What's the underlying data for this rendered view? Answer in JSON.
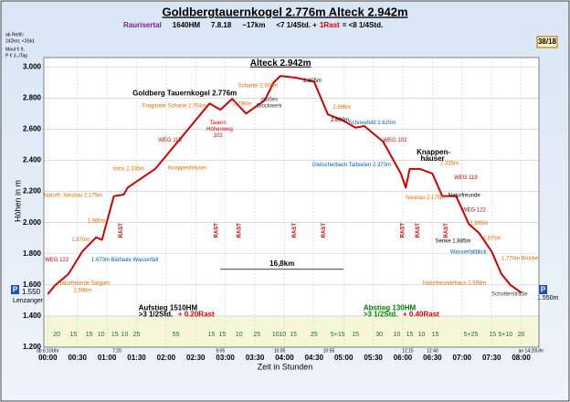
{
  "chart_data": {
    "type": "line",
    "title": "Goldbergtauernkogel 2.776m  Alteck 2.942m",
    "subtitle_items": [
      {
        "text": "Raurisertal",
        "color": "#7a1fa2"
      },
      {
        "text": "1640HM",
        "color": "#000000"
      },
      {
        "text": "7.8.18",
        "color": "#000000"
      },
      {
        "text": "~17km",
        "color": "#000000"
      },
      {
        "text": "<7 1/4Std. +",
        "color": "#000000"
      },
      {
        "text": "1Rast",
        "color": "#e00000"
      },
      {
        "text": "= <8 1/4Std.",
        "color": "#000000"
      }
    ],
    "page_badge": "38/18",
    "notes": [
      "ab Reith:",
      "242km; <3Std.",
      "Maut € 9,",
      "P € 3,-/Tag"
    ],
    "y_label": "Höhen in m",
    "x_label": "Zeit in Stunden",
    "xlim": [
      -4,
      498
    ],
    "ylim": [
      1200,
      3060
    ],
    "xticks": [
      {
        "value": 0,
        "label": "00:00"
      },
      {
        "value": 30,
        "label": "00:30"
      },
      {
        "value": 60,
        "label": "01:00"
      },
      {
        "value": 90,
        "label": "01:30"
      },
      {
        "value": 120,
        "label": "02:00"
      },
      {
        "value": 150,
        "label": "02:30"
      },
      {
        "value": 180,
        "label": "03:00"
      },
      {
        "value": 210,
        "label": "03:30"
      },
      {
        "value": 240,
        "label": "04:00"
      },
      {
        "value": 270,
        "label": "04:30"
      },
      {
        "value": 300,
        "label": "05:00"
      },
      {
        "value": 330,
        "label": "05:30"
      },
      {
        "value": 360,
        "label": "06:00"
      },
      {
        "value": 390,
        "label": "06:30"
      },
      {
        "value": 420,
        "label": "07:00"
      },
      {
        "value": 450,
        "label": "07:30"
      },
      {
        "value": 480,
        "label": "08:00"
      }
    ],
    "yticks": [
      {
        "value": 1200,
        "label": "1.200"
      },
      {
        "value": 1400,
        "label": "1.400"
      },
      {
        "value": 1600,
        "label": "1.600"
      },
      {
        "value": 1800,
        "label": "1.800"
      },
      {
        "value": 2000,
        "label": "2.000"
      },
      {
        "value": 2200,
        "label": "2.200"
      },
      {
        "value": 2400,
        "label": "2.400"
      },
      {
        "value": 2600,
        "label": "2.600"
      },
      {
        "value": 2800,
        "label": "2.800"
      },
      {
        "value": 3000,
        "label": "3.000"
      }
    ],
    "grid": true,
    "x": [
      0,
      7,
      21,
      35,
      49,
      55,
      67,
      77,
      81,
      109,
      164,
      175,
      187,
      201,
      220,
      229,
      236,
      252,
      270,
      284,
      298,
      312,
      321,
      340,
      358,
      363,
      367,
      377,
      390,
      400,
      414,
      427,
      437,
      450,
      460,
      469,
      480
    ],
    "series": [
      {
        "color": "#d40000",
        "values": [
          1540,
          1595,
          1670,
          1815,
          1905,
          1890,
          2170,
          2180,
          2225,
          2345,
          2765,
          2725,
          2795,
          2700,
          2785,
          2900,
          2942,
          2930,
          2905,
          2695,
          2660,
          2610,
          2620,
          2520,
          2315,
          2225,
          2345,
          2345,
          2315,
          2170,
          2170,
          1990,
          1935,
          1815,
          1670,
          1600,
          1550
        ]
      }
    ],
    "peak_label": "Alteck 2.942m",
    "peak_x": 236,
    "peak_y": 2942,
    "annotations": [
      {
        "text": "Goldberg Tauernkogel  2.776m",
        "x": 86,
        "y": 2830,
        "color": "#000000",
        "bold": true
      },
      {
        "text": "Fraganter Scharte 2.754m",
        "x": 96,
        "y": 2750,
        "color": "#e07000",
        "bold": false
      },
      {
        "text": "2.796m",
        "x": 188,
        "y": 2760,
        "color": "#e07000",
        "bold": false
      },
      {
        "text": "Tauern",
        "x": 164,
        "y": 2640,
        "color": "#d40000",
        "bold": false
      },
      {
        "text": "Höhenweg",
        "x": 161,
        "y": 2600,
        "color": "#d40000",
        "bold": false
      },
      {
        "text": "102",
        "x": 168,
        "y": 2560,
        "color": "#d40000",
        "bold": false
      },
      {
        "text": "WEG 119",
        "x": 112,
        "y": 2530,
        "color": "#d40000",
        "bold": false
      },
      {
        "text": "großes",
        "x": 216,
        "y": 2790,
        "color": "#333333",
        "bold": false
      },
      {
        "text": "Blockwerk",
        "x": 212,
        "y": 2750,
        "color": "#333333",
        "bold": false
      },
      {
        "text": "Schartel 2.905m",
        "x": 193,
        "y": 2880,
        "color": "#e07000",
        "bold": false
      },
      {
        "text": "2.905m",
        "x": 259,
        "y": 2910,
        "color": "#000000",
        "bold": false
      },
      {
        "text": "2.696m",
        "x": 289,
        "y": 2740,
        "color": "#e07000",
        "bold": false
      },
      {
        "text": "2.660m",
        "x": 287,
        "y": 2660,
        "color": "#000000",
        "bold": false
      },
      {
        "text": "Schneefeld 2.620m",
        "x": 305,
        "y": 2640,
        "color": "#0060c0",
        "bold": false
      },
      {
        "text": "WEG 102",
        "x": 340,
        "y": 2530,
        "color": "#d40000",
        "bold": false
      },
      {
        "text": "Knappen-",
        "x": 374,
        "y": 2450,
        "color": "#000000",
        "bold": true
      },
      {
        "text": "häuser",
        "x": 378,
        "y": 2410,
        "color": "#000000",
        "bold": true
      },
      {
        "text": "2.335m",
        "x": 398,
        "y": 2380,
        "color": "#e07000",
        "bold": false
      },
      {
        "text": "WEG 119",
        "x": 412,
        "y": 2290,
        "color": "#d40000",
        "bold": false
      },
      {
        "text": "Neubau 2.175m",
        "x": 363,
        "y": 2160,
        "color": "#e07000",
        "bold": false
      },
      {
        "text": "Naturfreunde",
        "x": 406,
        "y": 2175,
        "color": "#000000",
        "bold": false
      },
      {
        "text": "WEG 122",
        "x": 420,
        "y": 2080,
        "color": "#d40000",
        "bold": false
      },
      {
        "text": "1.985m",
        "x": 428,
        "y": 1995,
        "color": "#e07000",
        "bold": false
      },
      {
        "text": "Senke 1.885m",
        "x": 393,
        "y": 1880,
        "color": "#000000",
        "bold": false
      },
      {
        "text": "1.870m",
        "x": 441,
        "y": 1900,
        "color": "#e07000",
        "bold": false
      },
      {
        "text": "Wasserfallblick",
        "x": 408,
        "y": 1810,
        "color": "#0060c0",
        "bold": false
      },
      {
        "text": "1.770m Brücke",
        "x": 460,
        "y": 1770,
        "color": "#e07000",
        "bold": false
      },
      {
        "text": "Naturfreundehaus 1.598m",
        "x": 380,
        "y": 1610,
        "color": "#e07000",
        "bold": false
      },
      {
        "text": "Schotterstraße",
        "x": 450,
        "y": 1540,
        "color": "#333333",
        "bold": false
      },
      {
        "text": "Gletscherbach Talboden 2.370m",
        "x": 268,
        "y": 2370,
        "color": "#0060c0",
        "bold": false
      },
      {
        "text": "Naturfr. Neubau 2.175m",
        "x": -4,
        "y": 2175,
        "color": "#e07000",
        "bold": false
      },
      {
        "text": "Imbs 2.335m",
        "x": 66,
        "y": 2345,
        "color": "#e07000",
        "bold": false
      },
      {
        "text": "Knappenhäuser",
        "x": 122,
        "y": 2350,
        "color": "#e07000",
        "bold": false
      },
      {
        "text": "1.985m",
        "x": 40,
        "y": 2010,
        "color": "#e07000",
        "bold": false
      },
      {
        "text": "1.870m",
        "x": 24,
        "y": 1890,
        "color": "#e07000",
        "bold": false
      },
      {
        "text": "1.670m Bärfaule Wasserfall",
        "x": 44,
        "y": 1760,
        "color": "#0060c0",
        "bold": false
      },
      {
        "text": "WEG 122",
        "x": -3,
        "y": 1760,
        "color": "#d40000",
        "bold": false
      },
      {
        "text": "Naturfreunde Saigurn",
        "x": 10,
        "y": 1610,
        "color": "#e07000",
        "bold": false
      },
      {
        "text": "1.598m",
        "x": 26,
        "y": 1565,
        "color": "#e07000",
        "bold": false
      }
    ],
    "rest_label": "RAST",
    "rest_x": [
      74,
      171,
      194,
      250,
      280,
      360,
      375,
      404
    ],
    "rest_y": 1950,
    "distance_label": "16,8km",
    "distance_from": 175,
    "distance_to": 300,
    "distance_y": 1700,
    "summary": [
      {
        "text": "Aufstieg 1510HM",
        "x": 92,
        "y": 1450,
        "color": "#000000"
      },
      {
        "text": ">3 1/2Std.",
        "x": 92,
        "y": 1410,
        "color": "#000000"
      },
      {
        "text": "+ 0.20Rast",
        "x": 132,
        "y": 1410,
        "color": "#e00000"
      },
      {
        "text": "Abstieg 130HM",
        "x": 320,
        "y": 1450,
        "color": "#008000"
      },
      {
        "text": ">3 1/2Std.",
        "x": 320,
        "y": 1410,
        "color": "#008000"
      },
      {
        "text": "+ 0.40Rast",
        "x": 360,
        "y": 1410,
        "color": "#e00000"
      }
    ],
    "clock_labels": [
      {
        "text": "ab 6:10Uhr",
        "x": 0
      },
      {
        "text": "7:20",
        "x": 70
      },
      {
        "text": "9:05",
        "x": 175
      },
      {
        "text": "10:05",
        "x": 235
      },
      {
        "text": "10:55",
        "x": 285
      },
      {
        "text": "12:15",
        "x": 365
      },
      {
        "text": "12:40",
        "x": 390
      },
      {
        "text": "an 14:20Uhr",
        "x": 490
      }
    ],
    "segments": [
      {
        "text": "20",
        "x": 9
      },
      {
        "text": "15",
        "x": 26
      },
      {
        "text": "15",
        "x": 42
      },
      {
        "text": "10",
        "x": 54
      },
      {
        "text": "15",
        "x": 68
      },
      {
        "text": "10",
        "x": 78
      },
      {
        "text": "25",
        "x": 90
      },
      {
        "text": "55",
        "x": 130
      },
      {
        "text": "15",
        "x": 166
      },
      {
        "text": "15",
        "x": 177
      },
      {
        "text": "10",
        "x": 194
      },
      {
        "text": "25",
        "x": 212
      },
      {
        "text": "10",
        "x": 231
      },
      {
        "text": "10",
        "x": 238
      },
      {
        "text": "15",
        "x": 249
      },
      {
        "text": "25",
        "x": 270
      },
      {
        "text": "5+15",
        "x": 294
      },
      {
        "text": "15",
        "x": 312
      },
      {
        "text": "30",
        "x": 336
      },
      {
        "text": "10",
        "x": 354
      },
      {
        "text": "15",
        "x": 367
      },
      {
        "text": "10",
        "x": 379
      },
      {
        "text": "15",
        "x": 393
      },
      {
        "text": "5+25",
        "x": 429
      },
      {
        "text": "15",
        "x": 451
      },
      {
        "text": "5+10",
        "x": 464
      },
      {
        "text": "20",
        "x": 480
      }
    ],
    "segment_y": 1280,
    "start_marker": {
      "p": "P",
      "height": "1.550",
      "place": "Lenzanger"
    },
    "end_marker": {
      "p": "P",
      "height": "1.550m"
    }
  }
}
